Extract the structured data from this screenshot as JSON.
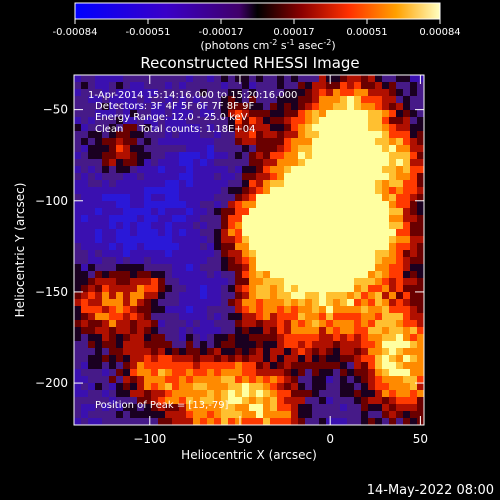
{
  "colorbar": {
    "ticks": [
      "-0.00084",
      "-0.00051",
      "-0.00017",
      "0.00017",
      "0.00051",
      "0.00084"
    ],
    "units_main": "(photons cm",
    "units_exp1": "-2",
    "units_mid": " s",
    "units_exp2": "-1",
    "units_end": " asec",
    "units_exp3": "-2",
    "units_close": ")"
  },
  "chart_data": {
    "type": "heatmap",
    "title": "Reconstructed RHESSI Image",
    "xlabel": "Heliocentric X (arcsec)",
    "ylabel": "Heliocentric Y (arcsec)",
    "xlim": [
      -142,
      52
    ],
    "ylim": [
      -223,
      -31
    ],
    "xticks": [
      -100,
      -50,
      0,
      50
    ],
    "yticks": [
      -50,
      -100,
      -150,
      -200
    ],
    "xtick_labels": [
      "−100",
      "−50",
      "0",
      "50"
    ],
    "ytick_labels": [
      "−50",
      "−100",
      "−150",
      "−200"
    ],
    "zlim": [
      -0.00084,
      0.00084
    ],
    "annotations": [
      "1-Apr-2014 15:14:16.000 to 15:20:16.000",
      "Detectors: 3F 4F 5F 6F 7F 8F 9F",
      "Energy Range: 12.0 - 25.0 keV",
      "Clean     Total counts: 1.18E+04"
    ],
    "peak_label": "Position of Peak = [13,-79]"
  },
  "footer": {
    "date": "14-May-2022 08:00"
  }
}
